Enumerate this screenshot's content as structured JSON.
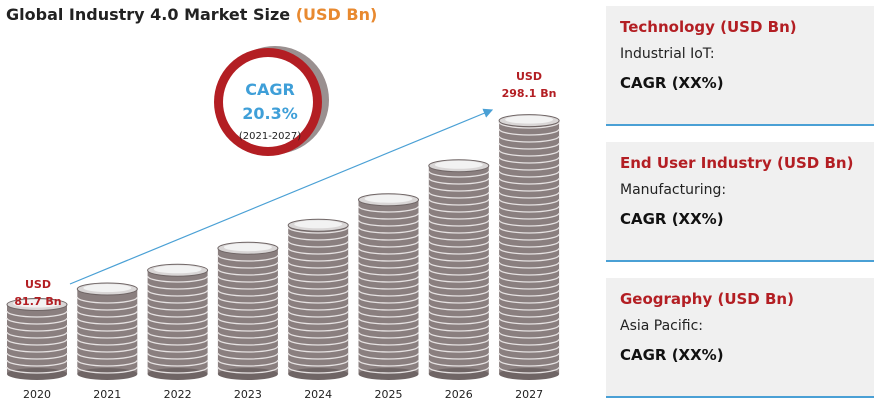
{
  "title": {
    "main": "Global Industry 4.0 Market Size ",
    "unit": "(USD Bn)"
  },
  "cagr_badge": {
    "label": "CAGR",
    "value": "20.3%",
    "period": "(2021-2027)"
  },
  "chart_data": {
    "type": "bar",
    "categories": [
      "2020",
      "2021",
      "2022",
      "2023",
      "2024",
      "2025",
      "2026",
      "2027"
    ],
    "values": [
      81.7,
      100,
      122,
      148,
      175,
      205,
      245,
      298.1
    ],
    "annotations": {
      "first": {
        "line1": "USD",
        "line2": "81.7 Bn"
      },
      "last": {
        "line1": "USD",
        "line2": "298.1 Bn"
      }
    },
    "ylim": [
      0,
      300
    ],
    "grid": false,
    "legend": "none",
    "colors": {
      "coin": "#8a7f7f",
      "coin_dark": "#6f6565",
      "coin_top": "#d9d6d6",
      "coin_face": "#f2f2f2",
      "label": "#b31e23",
      "arrow": "#4aa0d5"
    }
  },
  "panels": [
    {
      "title": "Technology (USD Bn)",
      "line": "Industrial IoT:",
      "cagr": "CAGR (XX%)"
    },
    {
      "title": "End User Industry (USD Bn)",
      "line": "Manufacturing:",
      "cagr": "CAGR (XX%)"
    },
    {
      "title": "Geography (USD Bn)",
      "line": "Asia Pacific:",
      "cagr": "CAGR (XX%)"
    }
  ],
  "colors": {
    "accent_orange": "#e8892f",
    "accent_red": "#b31e23",
    "ring_red": "#b31e23",
    "cagr_blue": "#3f9fd8",
    "panel_bg": "#f0f0f0",
    "panel_border": "#4aa0d5"
  }
}
